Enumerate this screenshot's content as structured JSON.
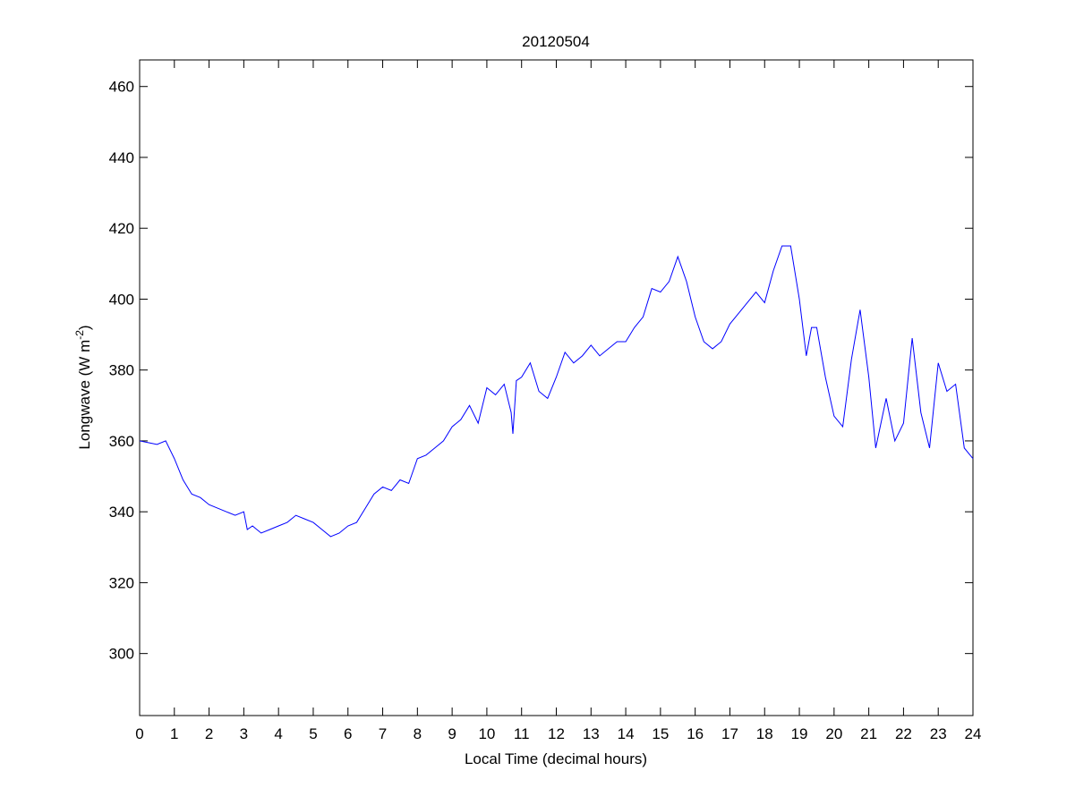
{
  "chart_data": {
    "type": "line",
    "title": "20120504",
    "xlabel": "Local Time (decimal hours)",
    "ylabel": {
      "text": "Longwave (W m",
      "sup": "-2",
      "end": ")"
    },
    "x": [
      0,
      0.25,
      0.5,
      0.75,
      1,
      1.25,
      1.5,
      1.75,
      2,
      2.25,
      2.5,
      2.75,
      3,
      3.1,
      3.25,
      3.5,
      3.75,
      4,
      4.25,
      4.5,
      4.75,
      5,
      5.25,
      5.5,
      5.75,
      6,
      6.25,
      6.5,
      6.75,
      7,
      7.25,
      7.5,
      7.75,
      8,
      8.25,
      8.5,
      8.75,
      9,
      9.25,
      9.5,
      9.75,
      10,
      10.25,
      10.5,
      10.7,
      10.75,
      10.85,
      11,
      11.25,
      11.5,
      11.75,
      12,
      12.25,
      12.5,
      12.75,
      13,
      13.25,
      13.5,
      13.75,
      14,
      14.25,
      14.5,
      14.75,
      15,
      15.25,
      15.5,
      15.75,
      16,
      16.25,
      16.5,
      16.75,
      17,
      17.25,
      17.5,
      17.75,
      18,
      18.25,
      18.5,
      18.75,
      19,
      19.2,
      19.35,
      19.5,
      19.75,
      20,
      20.25,
      20.5,
      20.75,
      21,
      21.2,
      21.5,
      21.75,
      22,
      22.25,
      22.5,
      22.75,
      23,
      23.25,
      23.5,
      23.75,
      24
    ],
    "series": [
      {
        "name": "Longwave",
        "color": "#0000ff",
        "values": [
          360,
          359.5,
          359,
          360,
          355,
          349,
          345,
          344,
          342,
          341,
          340,
          339,
          340,
          335,
          336,
          334,
          335,
          336,
          337,
          339,
          338,
          337,
          335,
          333,
          334,
          336,
          337,
          341,
          345,
          347,
          346,
          349,
          348,
          355,
          356,
          358,
          360,
          364,
          366,
          370,
          365,
          375,
          373,
          376,
          368,
          362,
          377,
          378,
          382,
          374,
          372,
          378,
          385,
          382,
          384,
          387,
          384,
          386,
          388,
          388,
          392,
          395,
          403,
          402,
          405,
          412,
          405,
          395,
          388,
          386,
          388,
          393,
          396,
          399,
          402,
          399,
          408,
          415,
          415,
          400,
          384,
          392,
          392,
          378,
          367,
          364,
          383,
          397,
          378,
          358,
          372,
          360,
          365,
          389,
          368,
          358,
          382,
          374,
          376,
          358,
          355
        ]
      }
    ],
    "xlim": [
      0,
      24
    ],
    "ylim": [
      282.5,
      467.5
    ],
    "xticks": [
      0,
      1,
      2,
      3,
      4,
      5,
      6,
      7,
      8,
      9,
      10,
      11,
      12,
      13,
      14,
      15,
      16,
      17,
      18,
      19,
      20,
      21,
      22,
      23,
      24
    ],
    "yticks": [
      300,
      320,
      340,
      360,
      380,
      400,
      420,
      440,
      460
    ],
    "grid": false
  }
}
